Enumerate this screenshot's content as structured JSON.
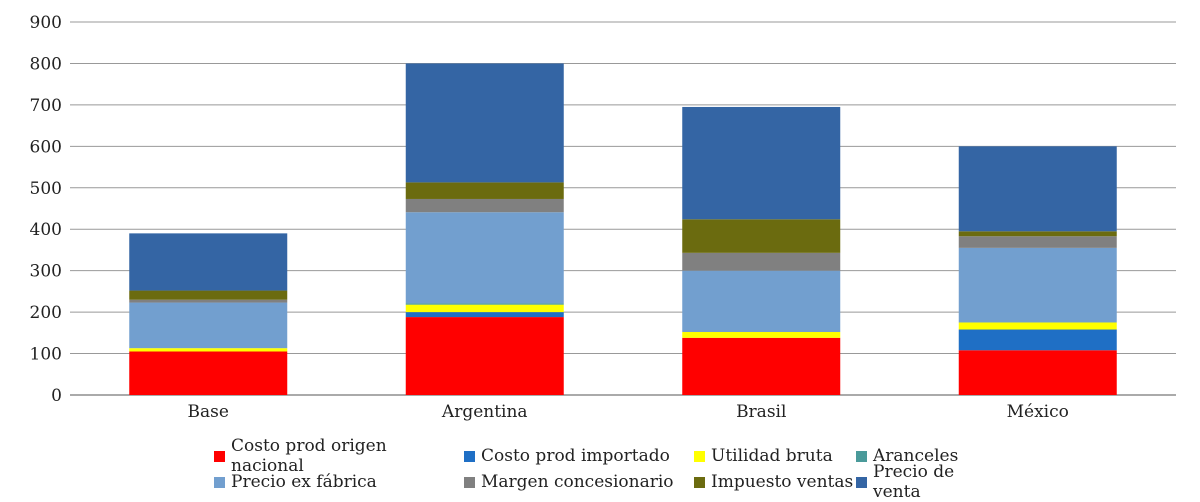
{
  "chart_data": {
    "type": "bar",
    "stacked": true,
    "categories": [
      "Base",
      "Argentina",
      "Brasil",
      "México"
    ],
    "ylim": [
      0,
      900
    ],
    "yticks": [
      0,
      100,
      200,
      300,
      400,
      500,
      600,
      700,
      800,
      900
    ],
    "grid": true,
    "legend_position": "bottom",
    "series": [
      {
        "name": "Costo prod origen nacional",
        "color": "#ff0000",
        "values": [
          105,
          188,
          138,
          108
        ]
      },
      {
        "name": "Costo prod importado",
        "color": "#1f6fc5",
        "values": [
          0,
          12,
          0,
          50
        ]
      },
      {
        "name": "Utilidad bruta",
        "color": "#ffff00",
        "values": [
          8,
          18,
          14,
          17
        ]
      },
      {
        "name": "Aranceles",
        "color": "#4a9a9a",
        "values": [
          0,
          3,
          0,
          0
        ]
      },
      {
        "name": "Precio ex fábrica",
        "color": "#729fcf",
        "values": [
          110,
          220,
          148,
          180
        ]
      },
      {
        "name": "Margen concesionario",
        "color": "#808080",
        "values": [
          7,
          32,
          43,
          28
        ]
      },
      {
        "name": "Impuesto ventas",
        "color": "#6b6b0f",
        "values": [
          22,
          40,
          81,
          12
        ]
      },
      {
        "name": "Precio de venta",
        "color": "#3465a4",
        "values": [
          138,
          287,
          271,
          205
        ]
      }
    ]
  }
}
